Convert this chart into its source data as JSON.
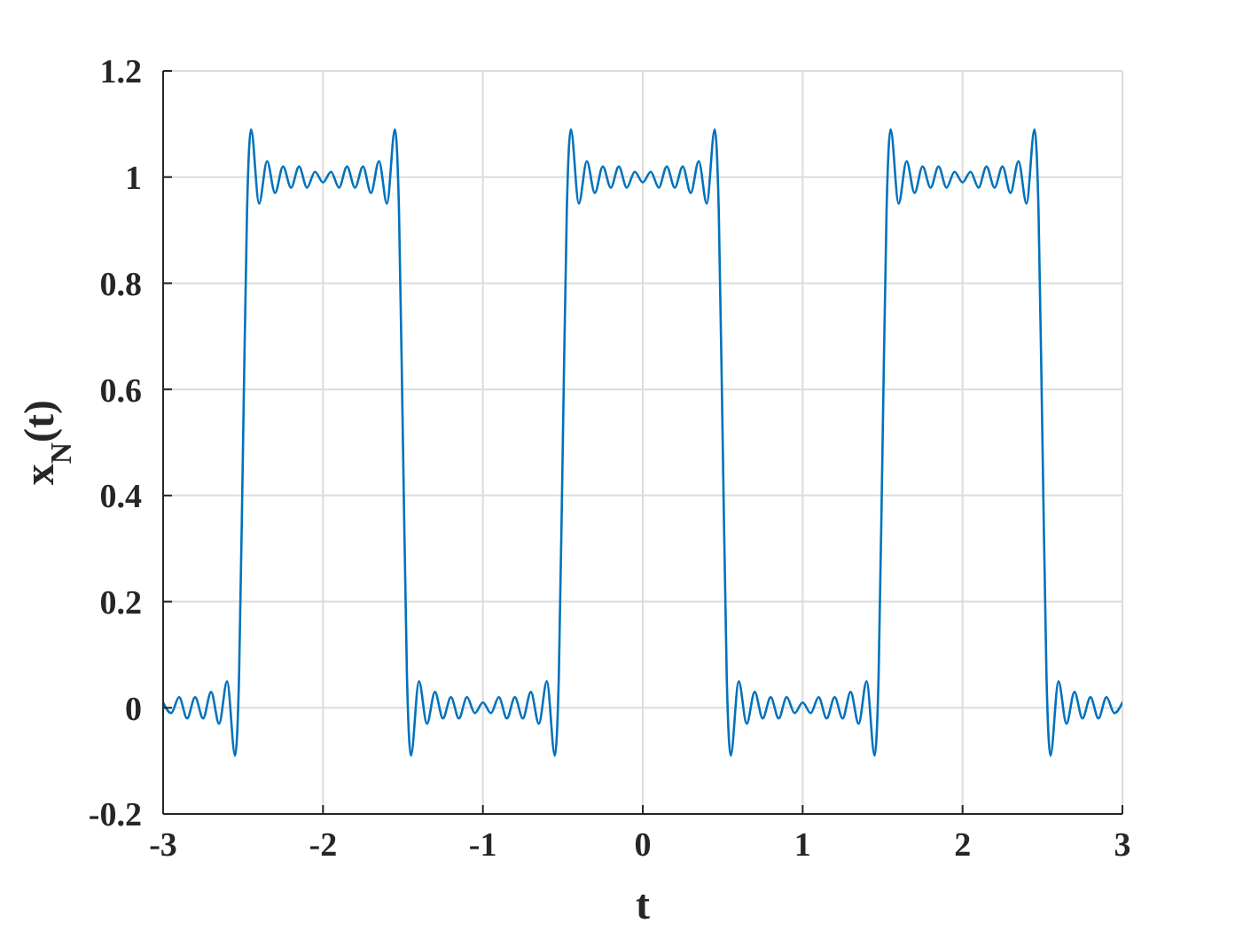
{
  "chart_data": {
    "type": "line",
    "xlabel": "t",
    "ylabel": "x$_{N}$(t)",
    "x": [
      -3,
      -2.95,
      -2.9,
      -2.85,
      -2.8,
      -2.75,
      -2.7,
      -2.65,
      -2.6,
      -2.55,
      -2.525,
      -2.5,
      -2.475,
      -2.45,
      -2.4,
      -2.35,
      -2.3,
      -2.25,
      -2.2,
      -2.15,
      -2.1,
      -2.05,
      -2,
      -1.95,
      -1.9,
      -1.85,
      -1.8,
      -1.75,
      -1.7,
      -1.65,
      -1.6,
      -1.55,
      -1.525,
      -1.5,
      -1.475,
      -1.45,
      -1.4,
      -1.35,
      -1.3,
      -1.25,
      -1.2,
      -1.15,
      -1.1,
      -1.05,
      -1,
      -0.95,
      -0.9,
      -0.85,
      -0.8,
      -0.75,
      -0.7,
      -0.65,
      -0.6,
      -0.55,
      -0.525,
      -0.5,
      -0.475,
      -0.45,
      -0.4,
      -0.35,
      -0.3,
      -0.25,
      -0.2,
      -0.15,
      -0.1,
      -0.05,
      0,
      0.05,
      0.1,
      0.15,
      0.2,
      0.25,
      0.3,
      0.35,
      0.4,
      0.45,
      0.475,
      0.5,
      0.525,
      0.55,
      0.6,
      0.65,
      0.7,
      0.75,
      0.8,
      0.85,
      0.9,
      0.95,
      1,
      1.05,
      1.1,
      1.15,
      1.2,
      1.25,
      1.3,
      1.35,
      1.4,
      1.45,
      1.475,
      1.5,
      1.525,
      1.55,
      1.6,
      1.65,
      1.7,
      1.75,
      1.8,
      1.85,
      1.9,
      1.95,
      2,
      2.05,
      2.1,
      2.15,
      2.2,
      2.25,
      2.3,
      2.35,
      2.4,
      2.45,
      2.475,
      2.5,
      2.525,
      2.55,
      2.6,
      2.65,
      2.7,
      2.75,
      2.8,
      2.85,
      2.9,
      2.95,
      3
    ],
    "series": [
      {
        "color": "#0072bd",
        "values": [
          0.01,
          -0.01,
          0.02,
          -0.02,
          0.02,
          -0.02,
          0.03,
          -0.03,
          0.05,
          -0.09,
          0.06,
          0.5,
          0.94,
          1.09,
          0.95,
          1.03,
          0.97,
          1.02,
          0.98,
          1.02,
          0.98,
          1.01,
          0.99,
          1.01,
          0.98,
          1.02,
          0.98,
          1.02,
          0.97,
          1.03,
          0.95,
          1.09,
          0.94,
          0.5,
          0.06,
          -0.09,
          0.05,
          -0.03,
          0.03,
          -0.02,
          0.02,
          -0.02,
          0.02,
          -0.01,
          0.01,
          -0.01,
          0.02,
          -0.02,
          0.02,
          -0.02,
          0.03,
          -0.03,
          0.05,
          -0.09,
          0.06,
          0.5,
          0.94,
          1.09,
          0.95,
          1.03,
          0.97,
          1.02,
          0.98,
          1.02,
          0.98,
          1.01,
          0.99,
          1.01,
          0.98,
          1.02,
          0.98,
          1.02,
          0.97,
          1.03,
          0.95,
          1.09,
          0.94,
          0.5,
          0.06,
          -0.09,
          0.05,
          -0.03,
          0.03,
          -0.02,
          0.02,
          -0.02,
          0.02,
          -0.01,
          0.01,
          -0.01,
          0.02,
          -0.02,
          0.02,
          -0.02,
          0.03,
          -0.03,
          0.05,
          -0.09,
          0.06,
          0.5,
          0.94,
          1.09,
          0.95,
          1.03,
          0.97,
          1.02,
          0.98,
          1.02,
          0.98,
          1.01,
          0.99,
          1.01,
          0.98,
          1.02,
          0.98,
          1.02,
          0.97,
          1.03,
          0.95,
          1.09,
          0.94,
          0.5,
          0.06,
          -0.09,
          0.05,
          -0.03,
          0.03,
          -0.02,
          0.02,
          -0.02,
          0.02,
          -0.01,
          0.01
        ]
      }
    ],
    "xlim": [
      -3,
      3
    ],
    "xticks": [
      -3,
      -2,
      -1,
      0,
      1,
      2,
      3
    ],
    "ylim": [
      -0.2,
      1.2
    ],
    "yticks": [
      -0.2,
      0,
      0.2,
      0.4,
      0.6,
      0.8,
      1,
      1.2
    ],
    "grid": true,
    "line_style": "solid"
  }
}
